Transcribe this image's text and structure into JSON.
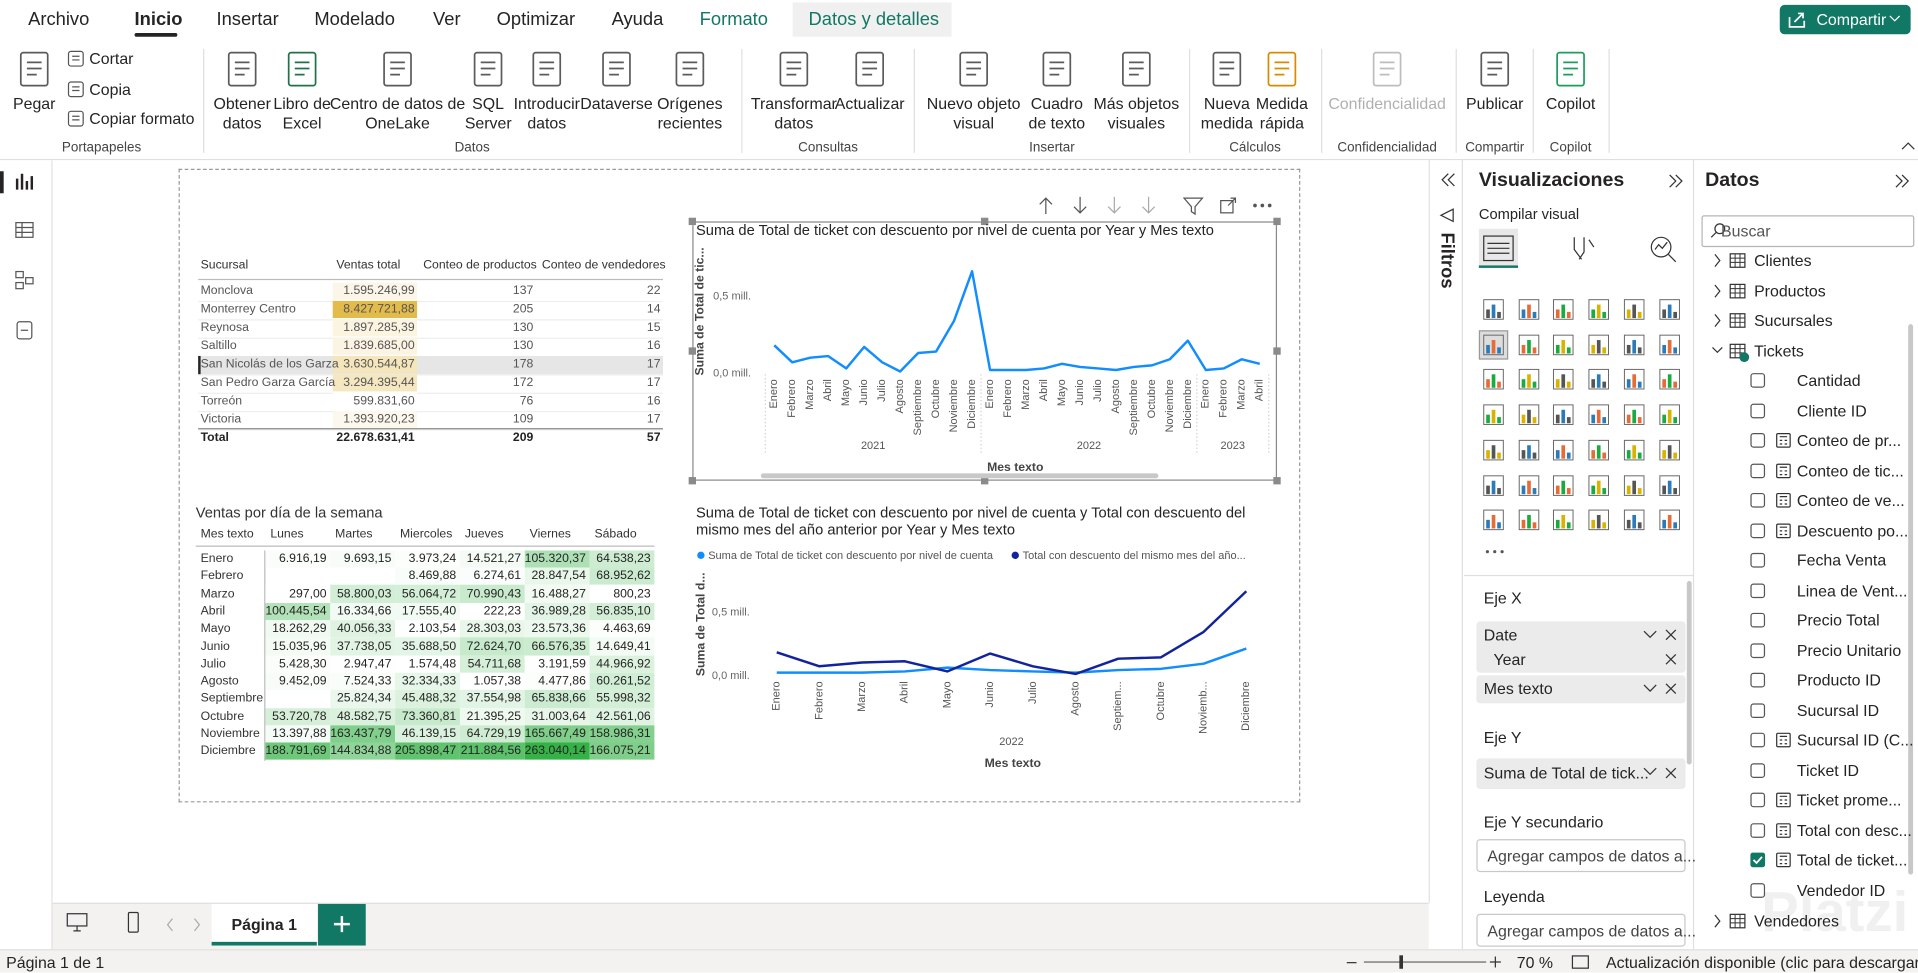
{
  "ribbon": {
    "tabs": [
      "Archivo",
      "Inicio",
      "Insertar",
      "Modelado",
      "Ver",
      "Optimizar",
      "Ayuda",
      "Formato",
      "Datos y detalles"
    ],
    "share": "Compartir",
    "groups": [
      {
        "label": "Portapapeles",
        "buttons": [
          "Pegar",
          "Cortar",
          "Copia",
          "Copiar formato"
        ]
      },
      {
        "label": "Datos",
        "buttons": [
          "Obtener datos",
          "Libro de Excel",
          "Centro de datos de OneLake",
          "SQL Server",
          "Introducir datos",
          "Dataverse",
          "Orígenes recientes"
        ]
      },
      {
        "label": "Consultas",
        "buttons": [
          "Transformar datos",
          "Actualizar"
        ]
      },
      {
        "label": "Insertar",
        "buttons": [
          "Nuevo objeto visual",
          "Cuadro de texto",
          "Más objetos visuales"
        ]
      },
      {
        "label": "Cálculos",
        "buttons": [
          "Nueva medida",
          "Medida rápida"
        ]
      },
      {
        "label": "Confidencialidad",
        "buttons": [
          "Confidencialidad"
        ]
      },
      {
        "label": "Compartir",
        "buttons": [
          "Publicar"
        ]
      },
      {
        "label": "Copilot",
        "buttons": [
          "Copilot"
        ]
      }
    ]
  },
  "report": {
    "table": {
      "columns": [
        "Sucursal",
        "Ventas total",
        "Conteo de productos",
        "Conteo de vendedores"
      ],
      "rows": [
        [
          "Monclova",
          "1.595.246,99",
          "137",
          "22"
        ],
        [
          "Monterrey Centro",
          "8.427.721,88",
          "205",
          "14"
        ],
        [
          "Reynosa",
          "1.897.285,39",
          "130",
          "15"
        ],
        [
          "Saltillo",
          "1.839.685,00",
          "130",
          "16"
        ],
        [
          "San Nicolás de los Garza",
          "3.630.544,87",
          "178",
          "17"
        ],
        [
          "San Pedro Garza García",
          "3.294.395,44",
          "172",
          "17"
        ],
        [
          "Torreón",
          "599.831,60",
          "76",
          "16"
        ],
        [
          "Victoria",
          "1.393.920,23",
          "109",
          "17"
        ]
      ],
      "total": [
        "Total",
        "22.678.631,41",
        "209",
        "57"
      ]
    },
    "matrix": {
      "title": "Ventas por día de la semana",
      "columns": [
        "Mes texto",
        "Lunes",
        "Martes",
        "Miercoles",
        "Jueves",
        "Viernes",
        "Sábado"
      ],
      "rows": [
        [
          "Enero",
          "6.916,19",
          "9.693,15",
          "3.973,24",
          "14.521,27",
          "105.320,37",
          "64.538,23"
        ],
        [
          "Febrero",
          null,
          null,
          "8.469,88",
          "6.274,61",
          "28.847,54",
          "68.952,62"
        ],
        [
          "Marzo",
          "297,00",
          "58.800,03",
          "56.064,72",
          "70.990,43",
          "16.488,27",
          "800,23"
        ],
        [
          "Abril",
          "100.445,54",
          "16.334,66",
          "17.555,40",
          "222,23",
          "36.989,28",
          "56.835,10"
        ],
        [
          "Mayo",
          "18.262,29",
          "40.056,33",
          "2.103,54",
          "28.303,03",
          "23.573,36",
          "4.463,69"
        ],
        [
          "Junio",
          "15.035,96",
          "37.738,05",
          "35.688,50",
          "72.624,70",
          "66.576,35",
          "14.649,41"
        ],
        [
          "Julio",
          "5.428,30",
          "2.947,47",
          "1.574,48",
          "54.711,68",
          "3.191,59",
          "44.966,92"
        ],
        [
          "Agosto",
          "9.452,09",
          "7.524,33",
          "32.334,33",
          "1.057,38",
          "4.477,86",
          "60.261,52"
        ],
        [
          "Septiembre",
          null,
          "25.824,34",
          "45.488,32",
          "37.554,98",
          "65.838,66",
          "55.998,32"
        ],
        [
          "Octubre",
          "53.720,78",
          "48.582,75",
          "73.360,81",
          "21.395,25",
          "31.003,64",
          "42.561,06"
        ],
        [
          "Noviembre",
          "13.397,88",
          "163.437,79",
          "46.139,15",
          "64.729,19",
          "165.667,49",
          "158.986,31"
        ],
        [
          "Diciembre",
          "188.791,69",
          "144.834,88",
          "205.898,47",
          "211.884,56",
          "263.040,14",
          "166.075,21"
        ]
      ]
    }
  },
  "chart_data": [
    {
      "type": "line",
      "title": "Suma de Total de ticket con descuento por nivel de cuenta por Year y Mes texto",
      "x_label": "Mes texto",
      "y_label": "Suma de Total de tic...",
      "categories": [
        "Enero",
        "Febrero",
        "Marzo",
        "Abril",
        "Mayo",
        "Junio",
        "Julio",
        "Agosto",
        "Septiembre",
        "Octubre",
        "Noviembre",
        "Diciembre",
        "Enero",
        "Febrero",
        "Marzo",
        "Abril",
        "Mayo",
        "Junio",
        "Julio",
        "Agosto",
        "Septiembre",
        "Octubre",
        "Noviembre",
        "Diciembre",
        "Enero",
        "Febrero",
        "Marzo",
        "Abril"
      ],
      "years": [
        "2021",
        "2022",
        "2023"
      ],
      "series": [
        {
          "name": "Suma de Total de ticket con descuento por nivel de cuenta",
          "color": "#118dff",
          "values": [
            180000,
            70000,
            100000,
            110000,
            30000,
            170000,
            70000,
            10000,
            130000,
            140000,
            340000,
            660000,
            20000,
            20000,
            20000,
            30000,
            60000,
            40000,
            30000,
            20000,
            40000,
            50000,
            90000,
            210000,
            20000,
            30000,
            90000,
            60000
          ]
        }
      ],
      "ylim": [
        0,
        800000
      ],
      "yticks": [
        {
          "value": 0,
          "label": "0,0 mill."
        },
        {
          "value": 500000,
          "label": "0,5 mill."
        }
      ],
      "grid": false
    },
    {
      "type": "line",
      "title": "Suma de Total de ticket con descuento por nivel de cuenta y Total con descuento del mismo mes del año anterior por Year y Mes texto",
      "x_label": "Mes texto",
      "y_label": "Suma de Total d...",
      "categories": [
        "Enero",
        "Febrero",
        "Marzo",
        "Abril",
        "Mayo",
        "Junio",
        "Julio",
        "Agosto",
        "Septiem...",
        "Octubre",
        "Noviemb...",
        "Diciembre"
      ],
      "years": [
        "2022"
      ],
      "series": [
        {
          "name": "Suma de Total de ticket con descuento por nivel de cuenta",
          "color": "#118dff",
          "values": [
            20000,
            20000,
            20000,
            30000,
            60000,
            40000,
            30000,
            20000,
            40000,
            50000,
            90000,
            210000
          ]
        },
        {
          "name": "Total con descuento del mismo mes del año...",
          "color": "#12239e",
          "values": [
            180000,
            70000,
            100000,
            110000,
            30000,
            170000,
            70000,
            10000,
            130000,
            140000,
            340000,
            660000
          ]
        }
      ],
      "ylim": [
        0,
        800000
      ],
      "yticks": [
        {
          "value": 0,
          "label": "0,0 mill."
        },
        {
          "value": 500000,
          "label": "0,5 mill."
        }
      ],
      "grid": false,
      "legend": "top-left"
    }
  ],
  "filters": {
    "label": "Filtros"
  },
  "visualizations": {
    "title": "Visualizaciones",
    "subtitle": "Compilar visual",
    "wells": [
      {
        "label": "Eje X",
        "fields": [
          "Date",
          "Year",
          "Mes texto"
        ]
      },
      {
        "label": "Eje Y",
        "fields": [
          "Suma de Total de tick..."
        ]
      },
      {
        "label": "Eje Y secundario",
        "placeholder": "Agregar campos de datos a..."
      },
      {
        "label": "Leyenda",
        "placeholder": "Agregar campos de datos a..."
      }
    ]
  },
  "data_pane": {
    "title": "Datos",
    "search": "Buscar",
    "tables": [
      {
        "name": "Clientes"
      },
      {
        "name": "Productos"
      },
      {
        "name": "Sucursales"
      },
      {
        "name": "Tickets",
        "fields": [
          {
            "name": "Cantidad",
            "checked": false
          },
          {
            "name": "Cliente ID",
            "checked": false
          },
          {
            "name": "Conteo de pr...",
            "checked": false
          },
          {
            "name": "Conteo de tic...",
            "checked": false
          },
          {
            "name": "Conteo de ve...",
            "checked": false
          },
          {
            "name": "Descuento po...",
            "checked": false
          },
          {
            "name": "Fecha Venta",
            "checked": false
          },
          {
            "name": "Linea de Vent...",
            "checked": false
          },
          {
            "name": "Precio Total",
            "checked": false
          },
          {
            "name": "Precio Unitario",
            "checked": false
          },
          {
            "name": "Producto ID",
            "checked": false
          },
          {
            "name": "Sucursal ID",
            "checked": false
          },
          {
            "name": "Sucursal ID (C...",
            "checked": false
          },
          {
            "name": "Ticket ID",
            "checked": false
          },
          {
            "name": "Ticket prome...",
            "checked": false
          },
          {
            "name": "Total con desc...",
            "checked": false
          },
          {
            "name": "Total de ticket...",
            "checked": true
          },
          {
            "name": "Vendedor ID",
            "checked": false
          }
        ]
      },
      {
        "name": "Vendedores"
      }
    ]
  },
  "page_tabs": {
    "page": "Página 1"
  },
  "status": {
    "page": "Página 1 de 1",
    "zoom": "70 %",
    "update": "Actualización disponible (clic para descargarla)"
  },
  "watermark": "Platzi"
}
